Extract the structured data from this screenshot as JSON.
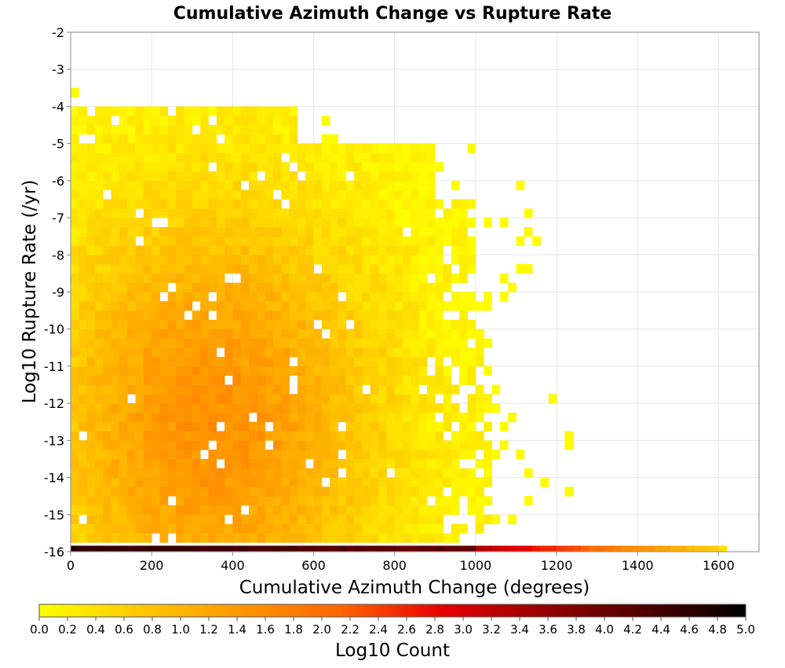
{
  "chart_data": {
    "type": "heatmap",
    "title": "Cumulative Azimuth Change vs Rupture Rate",
    "xlabel": "Cumulative Azimuth Change (degrees)",
    "ylabel": "Log10 Rupture Rate (/yr)",
    "xlim": [
      0,
      1700
    ],
    "ylim": [
      -16,
      -2
    ],
    "x_ticks": [
      "0",
      "200",
      "400",
      "600",
      "800",
      "1000",
      "1200",
      "1400",
      "1600"
    ],
    "y_ticks": [
      "-2",
      "-3",
      "-4",
      "-5",
      "-6",
      "-7",
      "-8",
      "-9",
      "-10",
      "-11",
      "-12",
      "-13",
      "-14",
      "-15",
      "-16"
    ],
    "grid": true,
    "colorbar": {
      "label": "Log10 Count",
      "range": [
        0,
        5
      ],
      "ticks": [
        "0.0",
        "0.2",
        "0.4",
        "0.6",
        "0.8",
        "1.0",
        "1.2",
        "1.4",
        "1.6",
        "1.8",
        "2.0",
        "2.2",
        "2.4",
        "2.6",
        "2.8",
        "3.0",
        "3.2",
        "3.4",
        "3.6",
        "3.8",
        "4.0",
        "4.2",
        "4.4",
        "4.6",
        "4.8",
        "5.0"
      ],
      "colors": [
        "#ffff00",
        "#ffc800",
        "#ff9600",
        "#ff6400",
        "#e60000",
        "#960000",
        "#500000",
        "#000000"
      ]
    },
    "bins": {
      "x_bin_width": 20,
      "y_bin_height": 0.25,
      "x_extent_for_rates_above_floor": [
        0,
        1240
      ],
      "floor_row": {
        "log10_rate": -16,
        "x_range": [
          0,
          1620
        ],
        "log10_count_start": 4.6,
        "log10_count_end": 0.4
      },
      "peak_region": {
        "x_center": 350,
        "log10_rate_center": -12.5,
        "log10_count_peak": 1.5
      },
      "sparse_region_x_start": 900
    }
  }
}
